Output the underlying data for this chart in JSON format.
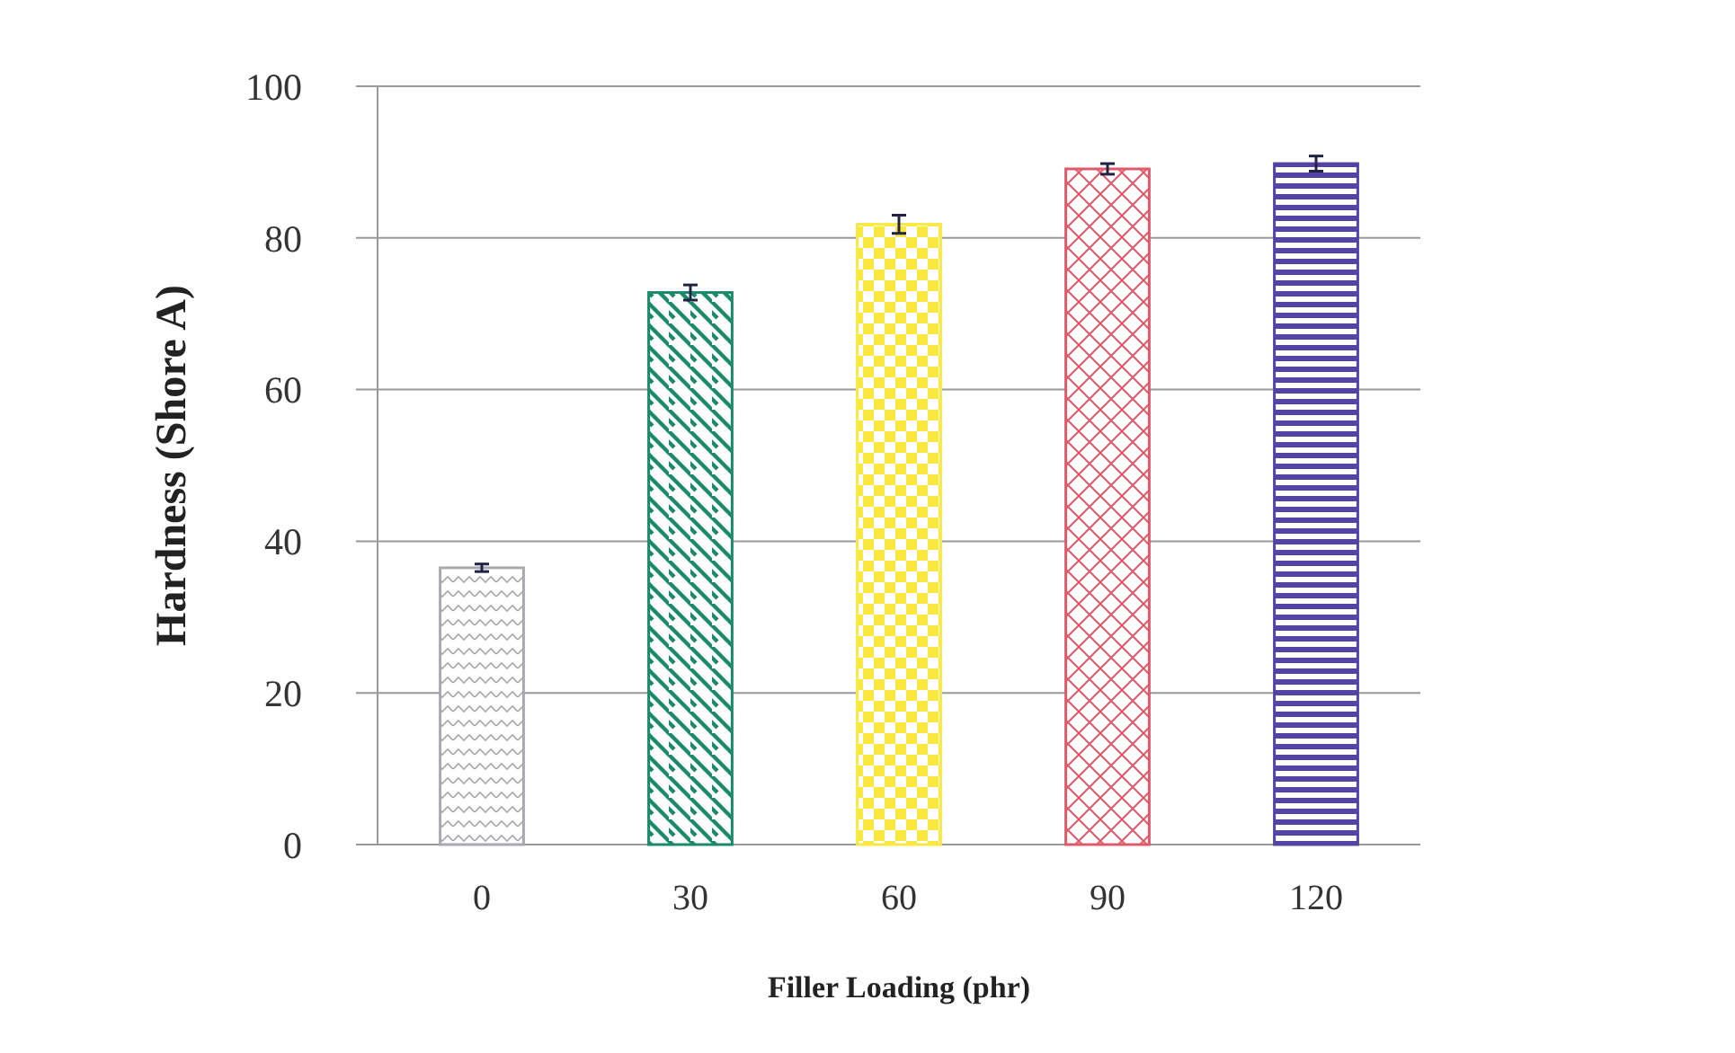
{
  "chart_data": {
    "type": "bar",
    "xlabel": "Filler Loading (phr)",
    "ylabel": "Hardness (Shore A)",
    "categories": [
      "0",
      "30",
      "60",
      "90",
      "120"
    ],
    "values": [
      36.5,
      72.8,
      81.8,
      89.1,
      89.8
    ],
    "errors": [
      0.5,
      1,
      1.2,
      0.7,
      1
    ],
    "colors": [
      "#a8a8b0",
      "#1a8a6a",
      "#f8e840",
      "#e05a6a",
      "#5444a4"
    ],
    "ylim": [
      0,
      100
    ],
    "yticks": [
      0,
      20,
      40,
      60,
      80,
      100
    ],
    "grid": "y"
  }
}
